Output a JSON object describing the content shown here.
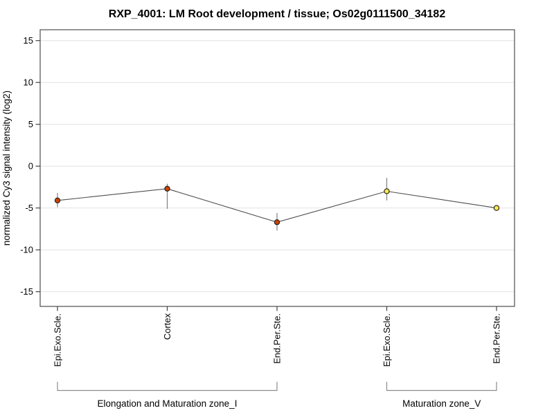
{
  "chart_data": {
    "type": "line",
    "title": "RXP_4001: LM Root development / tissue; Os02g0111500_34182",
    "xlabel": "",
    "ylabel": "normalized Cy3 signal intensity (log2)",
    "ylim": [
      -16.5,
      16.5
    ],
    "yticks": [
      15,
      10,
      5,
      0,
      -5,
      -10,
      -15
    ],
    "grid": true,
    "legend_position": "none",
    "marker": "circle",
    "categories": [
      "Epi.Exo.Scle.",
      "Cortex",
      "End.Per.Ste.",
      "Epi.Exo.Scle.",
      "End.Per.Ste."
    ],
    "points": [
      {
        "category": "Epi.Exo.Scle.",
        "value": -4.1,
        "err_high": -3.2,
        "err_low": -4.9,
        "marker_fill": "#cc4400"
      },
      {
        "category": "Cortex",
        "value": -2.7,
        "err_high": -2.1,
        "err_low": -5.1,
        "marker_fill": "#cc4400"
      },
      {
        "category": "End.Per.Ste.",
        "value": -6.7,
        "err_high": -5.6,
        "err_low": -7.7,
        "marker_fill": "#cc4400"
      },
      {
        "category": "Epi.Exo.Scle.",
        "value": -3.0,
        "err_high": -1.4,
        "err_low": -4.1,
        "marker_fill": "#ffe84d"
      },
      {
        "category": "End.Per.Ste.",
        "value": -5.0,
        "err_high": -4.9,
        "err_low": -5.1,
        "marker_fill": "#ffe84d"
      }
    ],
    "groups": [
      {
        "label": "Elongation and Maturation zone_I",
        "start_index": 0,
        "end_index": 2
      },
      {
        "label": "Maturation zone_V",
        "start_index": 3,
        "end_index": 4
      }
    ],
    "colors": {
      "series_line": "#4d4d4d",
      "error_bar": "#808080",
      "marker_stroke": "#1a1a1a",
      "grid": "#e2e2e2",
      "plot_border": "#5a5a5a",
      "tick": "#404040",
      "bracket": "#8c8c8c",
      "text": "#000000",
      "background": "#ffffff"
    }
  }
}
